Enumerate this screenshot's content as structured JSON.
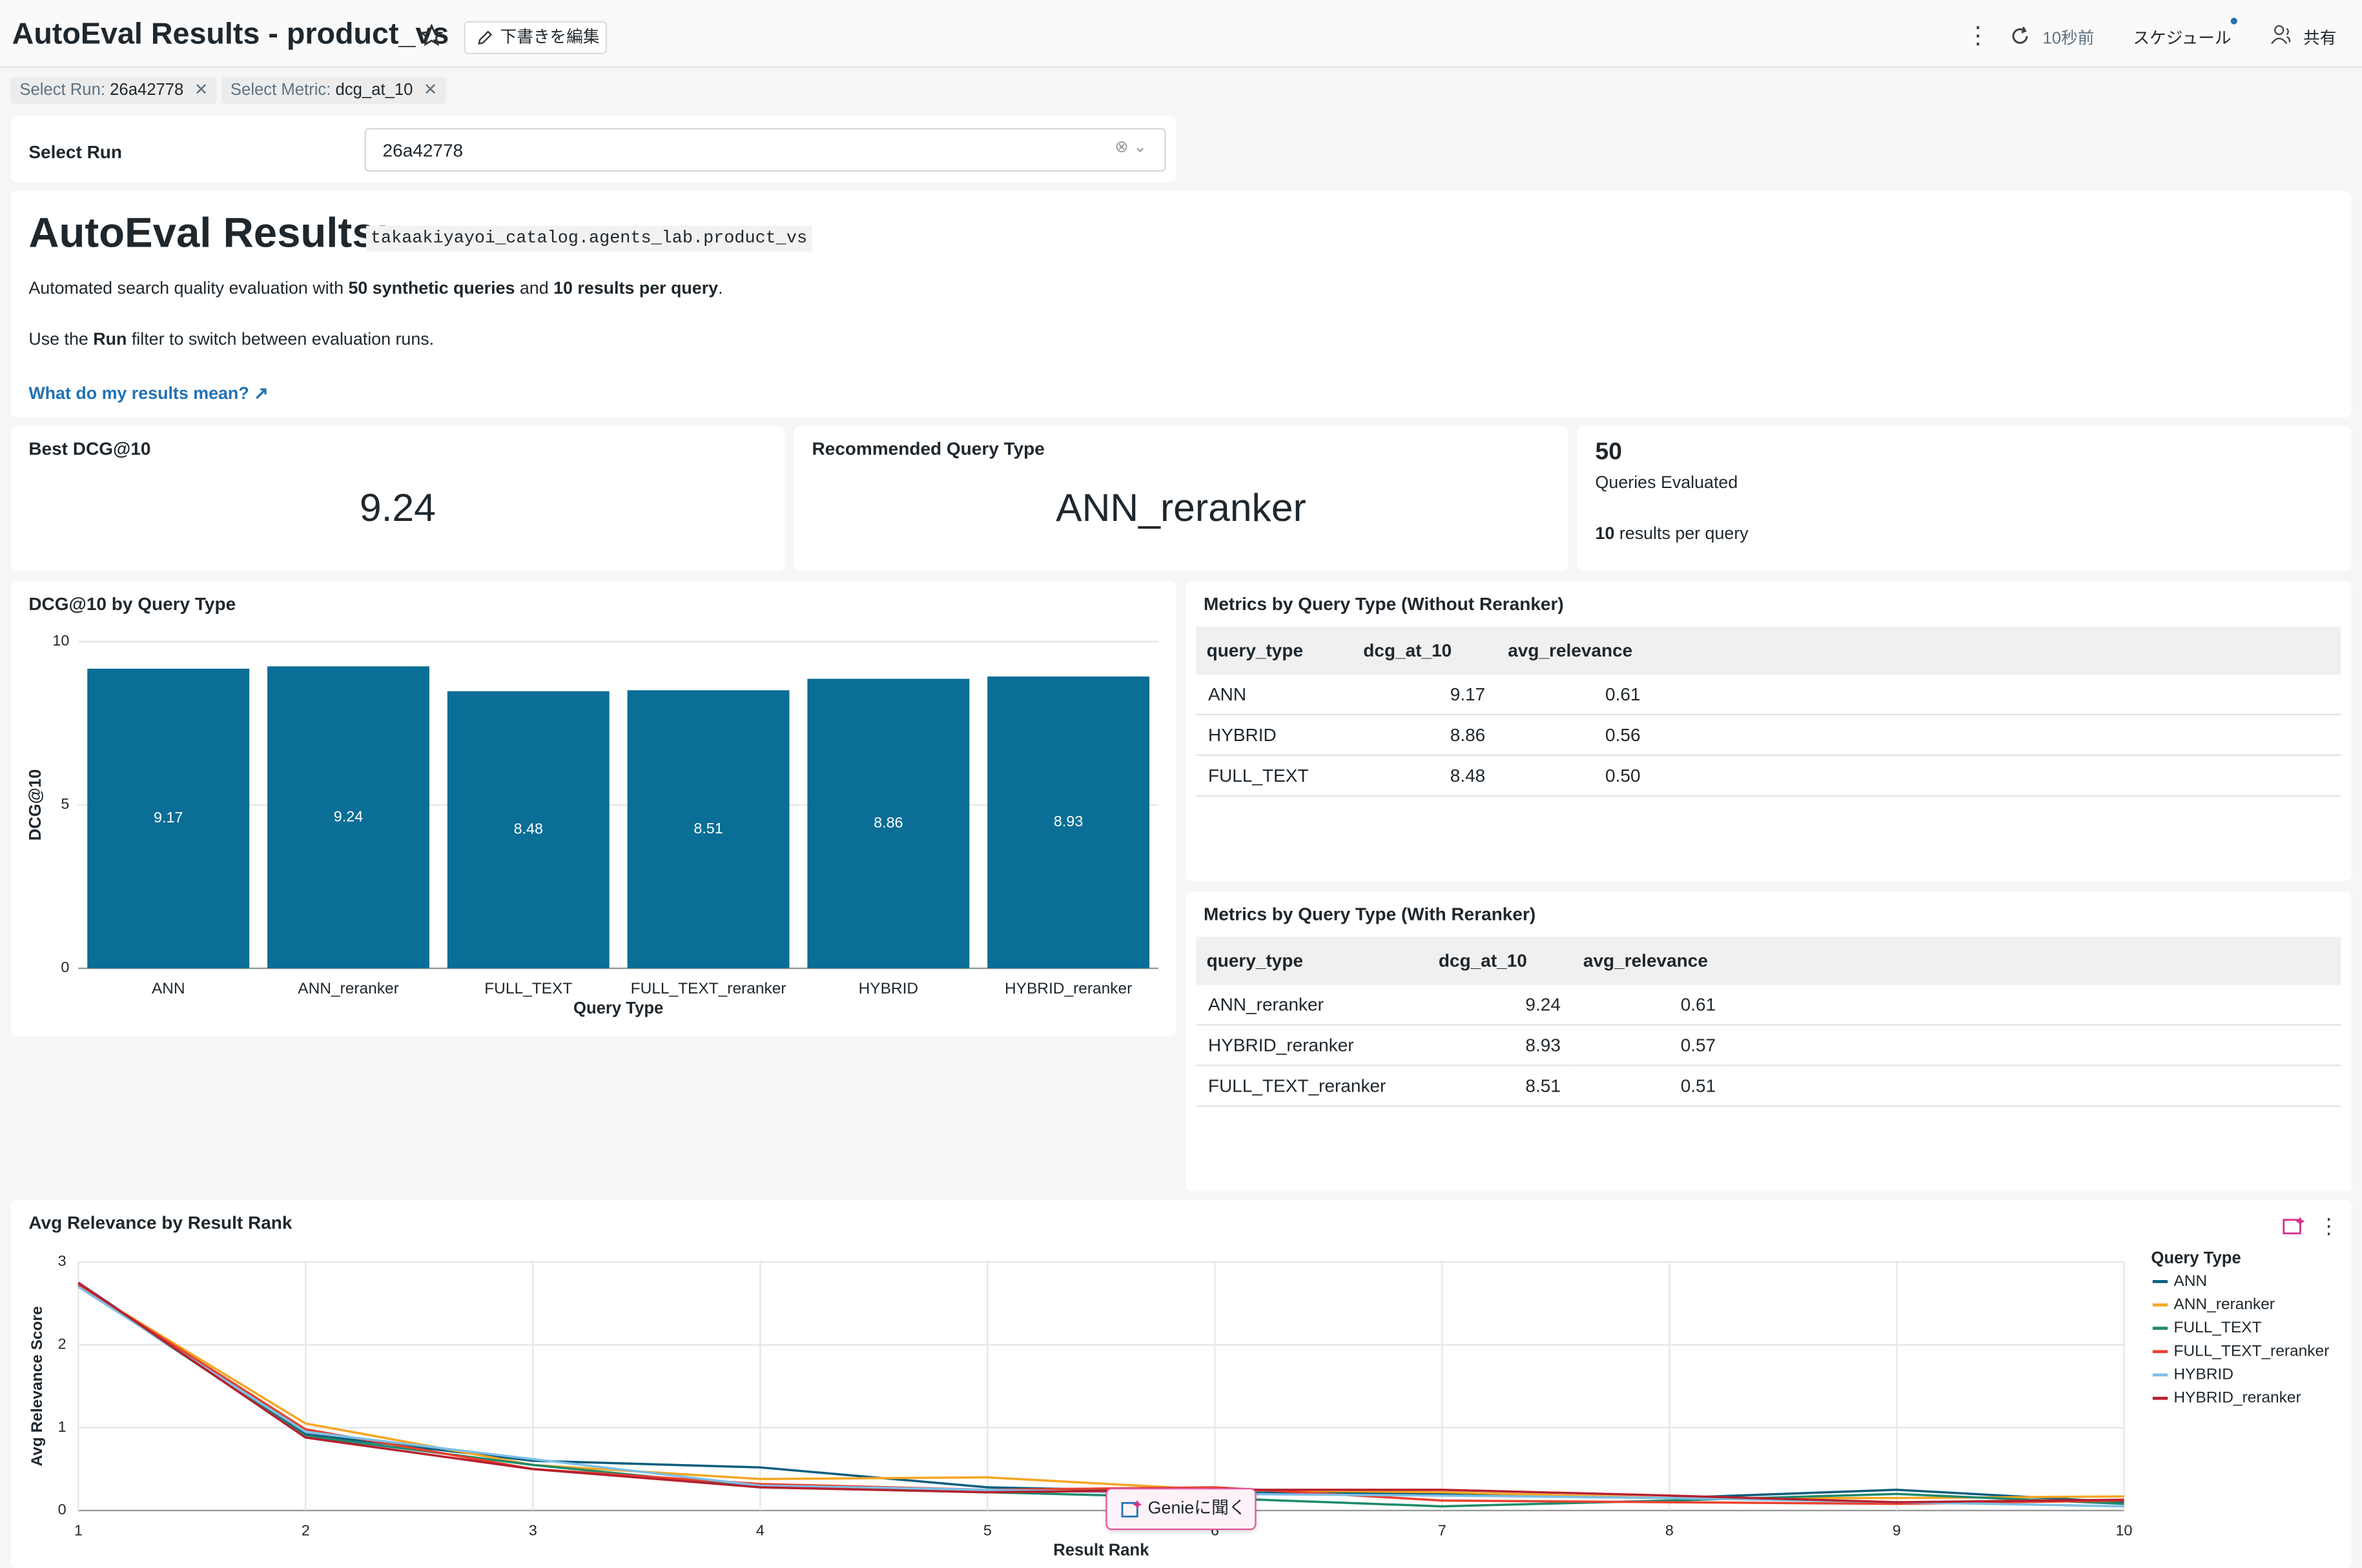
{
  "header": {
    "title": "AutoEval Results - product_vs",
    "edit_button": "下書きを編集",
    "refreshed": "10秒前",
    "schedule": "スケジュール",
    "share": "共有"
  },
  "filters": [
    {
      "label": "Select Run:",
      "value": "26a42778"
    },
    {
      "label": "Select Metric:",
      "value": "dcg_at_10"
    }
  ],
  "select_run": {
    "label": "Select Run",
    "value": "26a42778"
  },
  "intro": {
    "heading": "AutoEval Results:",
    "table_name": "takaakiyayoi_catalog.agents_lab.product_vs",
    "line1": [
      "Automated search quality evaluation with ",
      "50 synthetic queries",
      " and ",
      "10 results per query",
      "."
    ],
    "line2": [
      "Use the ",
      "Run",
      " filter to switch between evaluation runs."
    ],
    "link": "What do my results mean?"
  },
  "kpis": [
    {
      "title": "Best DCG@10",
      "value": 9.24
    },
    {
      "title": "Recommended Query Type",
      "value": "ANN_reranker"
    },
    {
      "value": 50,
      "caption": "Queries Evaluated",
      "note": [
        "10",
        " results per query"
      ]
    }
  ],
  "tables": [
    {
      "title": "Metrics by Query Type (Without Reranker)",
      "columns": [
        "query_type",
        "dcg_at_10",
        "avg_relevance"
      ],
      "rows": [
        [
          "ANN",
          "9.17",
          "0.61"
        ],
        [
          "HYBRID",
          "8.86",
          "0.56"
        ],
        [
          "FULL_TEXT",
          "8.48",
          "0.50"
        ]
      ]
    },
    {
      "title": "Metrics by Query Type (With Reranker)",
      "columns": [
        "query_type",
        "dcg_at_10",
        "avg_relevance"
      ],
      "rows": [
        [
          "ANN_reranker",
          "9.24",
          "0.61"
        ],
        [
          "HYBRID_reranker",
          "8.93",
          "0.57"
        ],
        [
          "FULL_TEXT_reranker",
          "8.51",
          "0.51"
        ]
      ]
    }
  ],
  "genie_button": "Genieに聞く",
  "chart_data": [
    {
      "type": "bar",
      "title": "DCG@10 by Query Type",
      "x_label": "Query Type",
      "y_label": "DCG@10",
      "categories": [
        "ANN",
        "ANN_reranker",
        "FULL_TEXT",
        "FULL_TEXT_reranker",
        "HYBRID",
        "HYBRID_reranker"
      ],
      "values": [
        9.17,
        9.24,
        8.48,
        8.51,
        8.86,
        8.93
      ],
      "color": "#0b6e96",
      "ylim": [
        0,
        10
      ],
      "yticks": [
        0,
        5,
        10
      ],
      "grid": true
    },
    {
      "type": "line",
      "title": "Avg Relevance by Result Rank",
      "x_label": "Result Rank",
      "y_label": "Avg Relevance Score",
      "legend_title": "Query Type",
      "legend": "right",
      "x": [
        1,
        2,
        3,
        4,
        5,
        6,
        7,
        8,
        9,
        10
      ],
      "xlim": [
        1,
        10
      ],
      "xticks": [
        1,
        2,
        3,
        4,
        5,
        6,
        7,
        8,
        9,
        10
      ],
      "ylim": [
        0,
        3
      ],
      "yticks": [
        0,
        1,
        2,
        3
      ],
      "grid": true,
      "series": [
        {
          "name": "ANN",
          "color": "#0a5e7e",
          "values": [
            2.75,
            0.92,
            0.6,
            0.52,
            0.28,
            0.22,
            0.2,
            0.15,
            0.25,
            0.1
          ]
        },
        {
          "name": "ANN_reranker",
          "color": "#f5a623",
          "values": [
            2.72,
            1.05,
            0.55,
            0.38,
            0.4,
            0.25,
            0.22,
            0.15,
            0.15,
            0.17
          ]
        },
        {
          "name": "FULL_TEXT",
          "color": "#1f8a6c",
          "values": [
            2.72,
            0.9,
            0.55,
            0.28,
            0.22,
            0.15,
            0.05,
            0.12,
            0.2,
            0.08
          ]
        },
        {
          "name": "FULL_TEXT_reranker",
          "color": "#e8412e",
          "values": [
            2.73,
            0.98,
            0.5,
            0.32,
            0.25,
            0.28,
            0.12,
            0.1,
            0.08,
            0.12
          ]
        },
        {
          "name": "HYBRID",
          "color": "#7cc0e8",
          "values": [
            2.7,
            0.95,
            0.62,
            0.3,
            0.25,
            0.2,
            0.18,
            0.15,
            0.1,
            0.05
          ]
        },
        {
          "name": "HYBRID_reranker",
          "color": "#b7202e",
          "values": [
            2.75,
            0.88,
            0.5,
            0.28,
            0.22,
            0.25,
            0.25,
            0.18,
            0.1,
            0.13
          ]
        }
      ]
    }
  ]
}
